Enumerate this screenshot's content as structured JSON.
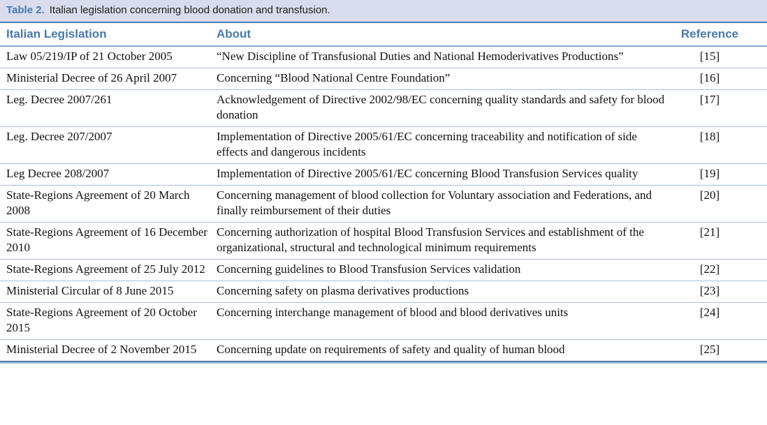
{
  "title": {
    "label": "Table 2.",
    "text": "Italian legislation concerning blood donation and transfusion."
  },
  "columns": {
    "legislation": "Italian Legislation",
    "about": "About",
    "reference": "Reference"
  },
  "rows": [
    {
      "legislation": "Law 05/219/IP of 21 October 2005",
      "about": "“New Discipline of Transfusional Duties and National Hemoderivatives Productions”",
      "reference": "[15]"
    },
    {
      "legislation": "Ministerial Decree of 26 April 2007",
      "about": "Concerning “Blood National Centre Foundation”",
      "reference": "[16]"
    },
    {
      "legislation": "Leg. Decree 2007/261",
      "about": "Acknowledgement of Directive 2002/98/EC concerning quality standards and safety for blood donation",
      "reference": "[17]"
    },
    {
      "legislation": "Leg. Decree 207/2007",
      "about": "Implementation of Directive 2005/61/EC concerning traceability and notification of side effects and dangerous incidents",
      "reference": "[18]"
    },
    {
      "legislation": "Leg Decree 208/2007",
      "about": "Implementation of Directive 2005/61/EC concerning Blood Transfusion Services quality",
      "reference": "[19]"
    },
    {
      "legislation": "State-Regions Agreement of 20 March 2008",
      "about": "Concerning management of blood collection for Voluntary association and Federations, and finally reimbursement of their duties",
      "reference": "[20]"
    },
    {
      "legislation": "State-Regions Agreement of 16 December 2010",
      "about": "Concerning authorization of hospital Blood Transfusion Services and establishment of the organizational, structural and technological minimum requirements",
      "reference": "[21]"
    },
    {
      "legislation": "State-Regions Agreement of 25 July 2012",
      "about": "Concerning guidelines to Blood Transfusion Services validation",
      "reference": "[22]"
    },
    {
      "legislation": "Ministerial Circular of 8 June 2015",
      "about": "Concerning safety on plasma derivatives productions",
      "reference": "[23]"
    },
    {
      "legislation": "State-Regions Agreement of 20 October 2015",
      "about": "Concerning interchange management of blood and blood derivatives units",
      "reference": "[24]"
    },
    {
      "legislation": "Ministerial Decree of 2 November 2015",
      "about": "Concerning update on requirements of safety and quality of human blood",
      "reference": "[25]"
    }
  ],
  "colors": {
    "accent_blue": "#4779ae",
    "rule_blue": "#4e7cb0",
    "divider_blue": "#a6c1dd",
    "titlebar_bg": "#d9dcec"
  }
}
